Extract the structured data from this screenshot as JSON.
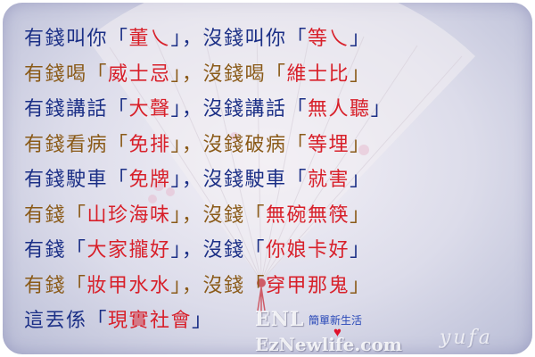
{
  "lines": [
    {
      "pre": "有錢叫你「",
      "h1": "董乀",
      "mid": "」，沒錢叫你「",
      "h2": "等乀",
      "post": "」"
    },
    {
      "pre": "有錢喝「",
      "h1": "威士忌",
      "mid": "」，沒錢喝「",
      "h2": "維士比",
      "post": "」"
    },
    {
      "pre": "有錢講話「",
      "h1": "大聲",
      "mid": "」，沒錢講話「",
      "h2": "無人聽",
      "post": "」"
    },
    {
      "pre": "有錢看病「",
      "h1": "免排",
      "mid": "」，沒錢破病「",
      "h2": "等埋",
      "post": "」"
    },
    {
      "pre": "有錢駛車「",
      "h1": "免牌",
      "mid": "」，沒錢駛車「",
      "h2": "就害",
      "post": "」"
    },
    {
      "pre": "有錢「",
      "h1": "山珍海味",
      "mid": "」，沒錢「",
      "h2": "無碗無筷",
      "post": "」"
    },
    {
      "pre": "有錢「",
      "h1": "大家攏好",
      "mid": "」，沒錢「",
      "h2": "你娘卡好",
      "post": "」"
    },
    {
      "pre": "有錢「",
      "h1": "妝甲水水",
      "mid": "」，沒錢「",
      "h2": "穿甲那鬼",
      "post": "」"
    },
    {
      "pre": "這丟係「",
      "h1": "現實社會",
      "mid": "」",
      "h2": "",
      "post": ""
    }
  ],
  "watermark": {
    "enl": "ENL",
    "subtitle": "簡單新生活",
    "url": "EzNewlife.com",
    "heart": "♥",
    "signature": "yufa"
  },
  "colors": {
    "blue_text": "#1b2f86",
    "brown_text": "#8a5a18",
    "highlight": "#d8202a"
  }
}
